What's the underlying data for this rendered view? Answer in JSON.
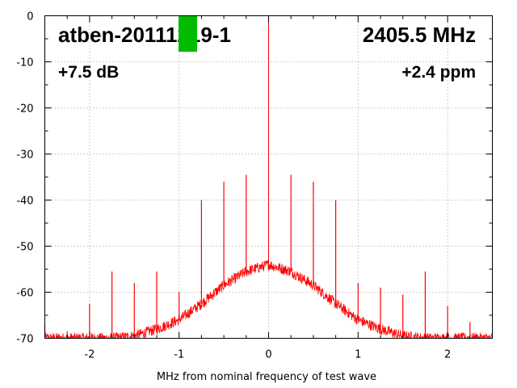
{
  "chart_data": {
    "type": "line",
    "xlabel": "MHz from nominal frequency of test wave",
    "ylabel": "",
    "xlim": [
      -2.5,
      2.5
    ],
    "ylim": [
      -70,
      0
    ],
    "x_ticks": [
      -2,
      -1,
      0,
      1,
      2
    ],
    "x_tick_labels": [
      "-2",
      "-1",
      "0",
      "1",
      "2"
    ],
    "y_ticks": [
      0,
      -10,
      -20,
      -30,
      -40,
      -50,
      -60,
      -70
    ],
    "y_tick_labels": [
      "0",
      "-10",
      "-20",
      "-30",
      "-40",
      "-50",
      "-60",
      "-70"
    ],
    "grid": true,
    "series_color": "#ff0000",
    "carrier": {
      "x": 0,
      "y": 0
    },
    "noise_envelope": {
      "x": [
        -2.5,
        -2.0,
        -1.75,
        -1.5,
        -1.25,
        -1.0,
        -0.75,
        -0.5,
        -0.25,
        0,
        0.25,
        0.5,
        0.75,
        1.0,
        1.25,
        1.5,
        1.75,
        2.0,
        2.5
      ],
      "y": [
        -70,
        -70,
        -70,
        -69.5,
        -68,
        -66,
        -62.5,
        -58.5,
        -55.5,
        -54,
        -55.5,
        -58.5,
        -62.5,
        -66,
        -68,
        -69.5,
        -70,
        -70,
        -70
      ]
    },
    "spurs": {
      "x": [
        -2.5,
        -2.25,
        -2.0,
        -1.75,
        -1.5,
        -1.25,
        -1.0,
        -0.75,
        -0.5,
        -0.25,
        0.25,
        0.5,
        0.75,
        1.0,
        1.25,
        1.5,
        1.75,
        2.0,
        2.25
      ],
      "y": [
        -67,
        -68.5,
        -62.5,
        -55.5,
        -58,
        -55.5,
        -60,
        -40,
        -36,
        -34.5,
        -34.5,
        -36,
        -40,
        -58,
        -59,
        -60.5,
        -55.5,
        -63,
        -66.5
      ]
    }
  },
  "annotations": {
    "device_id": "atben-20111219-1",
    "frequency": "2405.5 MHz",
    "gain": "+7.5 dB",
    "ppm": "+2.4 ppm",
    "marker_color": "#00bb00"
  }
}
